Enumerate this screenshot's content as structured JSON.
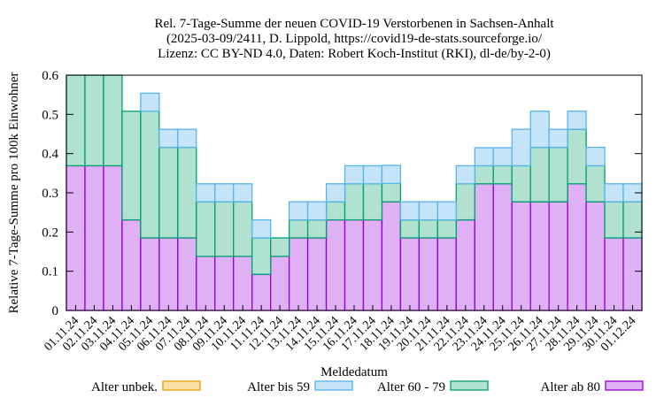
{
  "chart_data": {
    "type": "bar",
    "stacked": true,
    "title_lines": [
      "Rel. 7-Tage-Summe der neuen COVID-19 Verstorbenen in Sachsen-Anhalt",
      "(2025-03-09/2411, D. Lippold, https://covid19-de-stats.sourceforge.io/",
      "Lizenz: CC BY-ND 4.0, Daten: Robert Koch-Institut (RKI), dl-de/by-2-0)"
    ],
    "xlabel": "Meldedatum",
    "ylabel": "Relative 7-Tage-Summe pro 100k Einwohner",
    "ylim": [
      0,
      0.6
    ],
    "yticks": [
      "0",
      "0.1",
      "0.2",
      "0.3",
      "0.4",
      "0.5",
      "0.6"
    ],
    "grid": false,
    "legend_position": "bottom",
    "categories": [
      "01.11.24",
      "02.11.24",
      "03.11.24",
      "04.11.24",
      "05.11.24",
      "06.11.24",
      "07.11.24",
      "08.11.24",
      "09.11.24",
      "10.11.24",
      "11.11.24",
      "12.11.24",
      "13.11.24",
      "14.11.24",
      "15.11.24",
      "16.11.24",
      "17.11.24",
      "18.11.24",
      "19.11.24",
      "20.11.24",
      "21.11.24",
      "22.11.24",
      "23.11.24",
      "24.11.24",
      "25.11.24",
      "26.11.24",
      "27.11.24",
      "28.11.24",
      "29.11.24",
      "30.11.24",
      "01.12.24"
    ],
    "series": [
      {
        "name": "Alter ab 80",
        "color": "#e0b0f4",
        "edge": "#9400d3",
        "values": [
          0.369,
          0.369,
          0.369,
          0.231,
          0.185,
          0.185,
          0.185,
          0.138,
          0.138,
          0.138,
          0.092,
          0.138,
          0.185,
          0.185,
          0.231,
          0.231,
          0.231,
          0.277,
          0.185,
          0.185,
          0.185,
          0.231,
          0.323,
          0.323,
          0.277,
          0.277,
          0.277,
          0.323,
          0.277,
          0.185,
          0.185
        ]
      },
      {
        "name": "Alter 60 - 79",
        "color": "#b1e2cf",
        "edge": "#009e73",
        "values": [
          0.231,
          0.231,
          0.231,
          0.277,
          0.323,
          0.231,
          0.231,
          0.139,
          0.139,
          0.139,
          0.093,
          0.047,
          0.046,
          0.046,
          0.046,
          0.092,
          0.092,
          0.047,
          0.046,
          0.046,
          0.046,
          0.092,
          0.046,
          0.046,
          0.092,
          0.139,
          0.139,
          0.139,
          0.092,
          0.092,
          0.092
        ]
      },
      {
        "name": "Alter bis 59",
        "color": "#c6e4f8",
        "edge": "#56b4e9",
        "values": [
          0,
          0,
          0,
          0,
          0.046,
          0.046,
          0.046,
          0.046,
          0.046,
          0.046,
          0.046,
          0,
          0.046,
          0.046,
          0.046,
          0.046,
          0.046,
          0.046,
          0.046,
          0.046,
          0.046,
          0.046,
          0.046,
          0.046,
          0.093,
          0.092,
          0.046,
          0.046,
          0.047,
          0.046,
          0.046
        ]
      },
      {
        "name": "Alter unbek.",
        "color": "#fbe1a6",
        "edge": "#e69f00",
        "values": [
          0,
          0,
          0,
          0,
          0,
          0,
          0,
          0,
          0,
          0,
          0,
          0,
          0,
          0,
          0,
          0,
          0,
          0,
          0,
          0,
          0,
          0,
          0,
          0,
          0,
          0,
          0,
          0,
          0,
          0,
          0
        ]
      }
    ],
    "legend_order": [
      "Alter unbek.",
      "Alter bis 59",
      "Alter 60 - 79",
      "Alter ab 80"
    ]
  }
}
